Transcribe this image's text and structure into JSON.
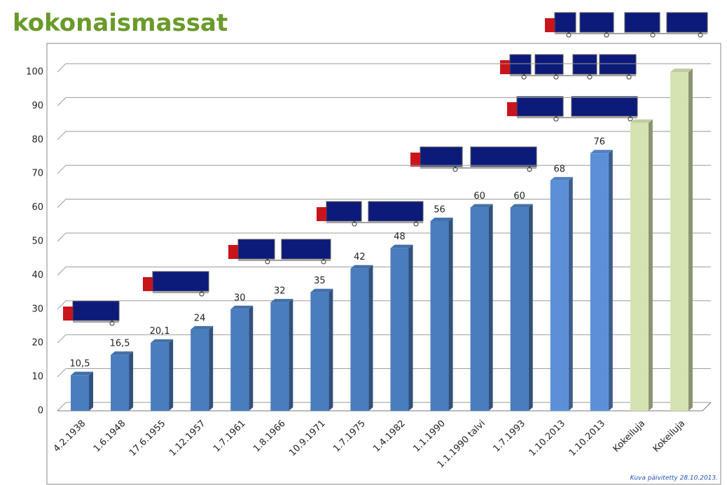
{
  "chart_data": {
    "type": "bar",
    "title": "kokonaismassat",
    "categories": [
      "4.2.1938",
      "1.6.1948",
      "17.6.1955",
      "1.12.1957",
      "1.7.1961",
      "1.8.1966",
      "10.9.1971",
      "1.7.1975",
      "1.4.1982",
      "1.1.1990",
      "1.1.1990 talvi",
      "1.7.1993",
      "1.10.2013",
      "1.10.2013",
      "Kokeiluja",
      "Kokeiluja"
    ],
    "values": [
      10.5,
      16.5,
      20.1,
      24,
      30,
      32,
      35,
      42,
      48,
      56,
      60,
      60,
      68,
      76,
      85,
      100
    ],
    "value_labels": [
      "10,5",
      "16,5",
      "20,1",
      "24",
      "30",
      "32",
      "35",
      "42",
      "48",
      "56",
      "60",
      "60",
      "68",
      "76",
      null,
      null
    ],
    "colors": [
      "#4a7dbd",
      "#4a7dbd",
      "#4a7dbd",
      "#4a7dbd",
      "#4a7dbd",
      "#4a7dbd",
      "#4a7dbd",
      "#4a7dbd",
      "#4a7dbd",
      "#4a7dbd",
      "#4a7dbd",
      "#4a7dbd",
      "#5b90d8",
      "#5b90d8",
      "#d5e3b3",
      "#d5e3b3"
    ],
    "ylim": [
      0,
      100
    ],
    "yticks": [
      0,
      10,
      20,
      30,
      40,
      50,
      60,
      70,
      80,
      90,
      100
    ],
    "grid": true,
    "note": "Kuva päivitetty 28.10.2013."
  }
}
